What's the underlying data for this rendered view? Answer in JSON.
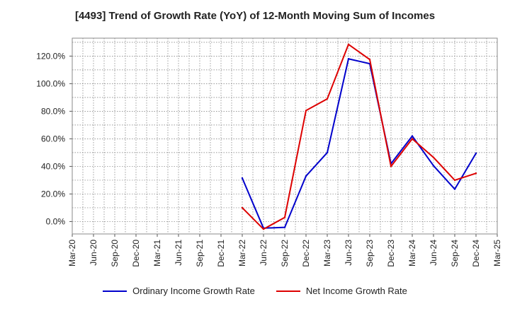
{
  "chart_data": {
    "type": "line",
    "title": "[4493]  Trend of Growth Rate (YoY) of 12-Month Moving Sum of Incomes",
    "x": [
      "Mar-20",
      "Jun-20",
      "Sep-20",
      "Dec-20",
      "Mar-21",
      "Jun-21",
      "Sep-21",
      "Dec-21",
      "Mar-22",
      "Jun-22",
      "Sep-22",
      "Dec-22",
      "Mar-23",
      "Jun-23",
      "Sep-23",
      "Dec-23",
      "Mar-24",
      "Jun-24",
      "Sep-24",
      "Dec-24",
      "Mar-25"
    ],
    "ylim": [
      -9,
      133
    ],
    "yticks": [
      0,
      20,
      40,
      60,
      80,
      100,
      120
    ],
    "ytick_labels": [
      "0.0%",
      "20.0%",
      "40.0%",
      "60.0%",
      "80.0%",
      "100.0%",
      "120.0%"
    ],
    "grid": true,
    "legend_position": "bottom",
    "series": [
      {
        "name": "Ordinary Income Growth Rate",
        "color": "#0000cc",
        "values": [
          null,
          null,
          null,
          null,
          null,
          null,
          null,
          null,
          31.5,
          -4.8,
          -4.2,
          33,
          50,
          118,
          114.5,
          42,
          62,
          40.5,
          23.5,
          49.5,
          null
        ]
      },
      {
        "name": "Net Income Growth Rate",
        "color": "#dd0000",
        "values": [
          null,
          null,
          null,
          null,
          null,
          null,
          null,
          null,
          10,
          -5.5,
          3,
          80.5,
          89,
          128.5,
          117.5,
          40,
          60,
          46.5,
          30,
          35,
          null
        ]
      }
    ]
  }
}
